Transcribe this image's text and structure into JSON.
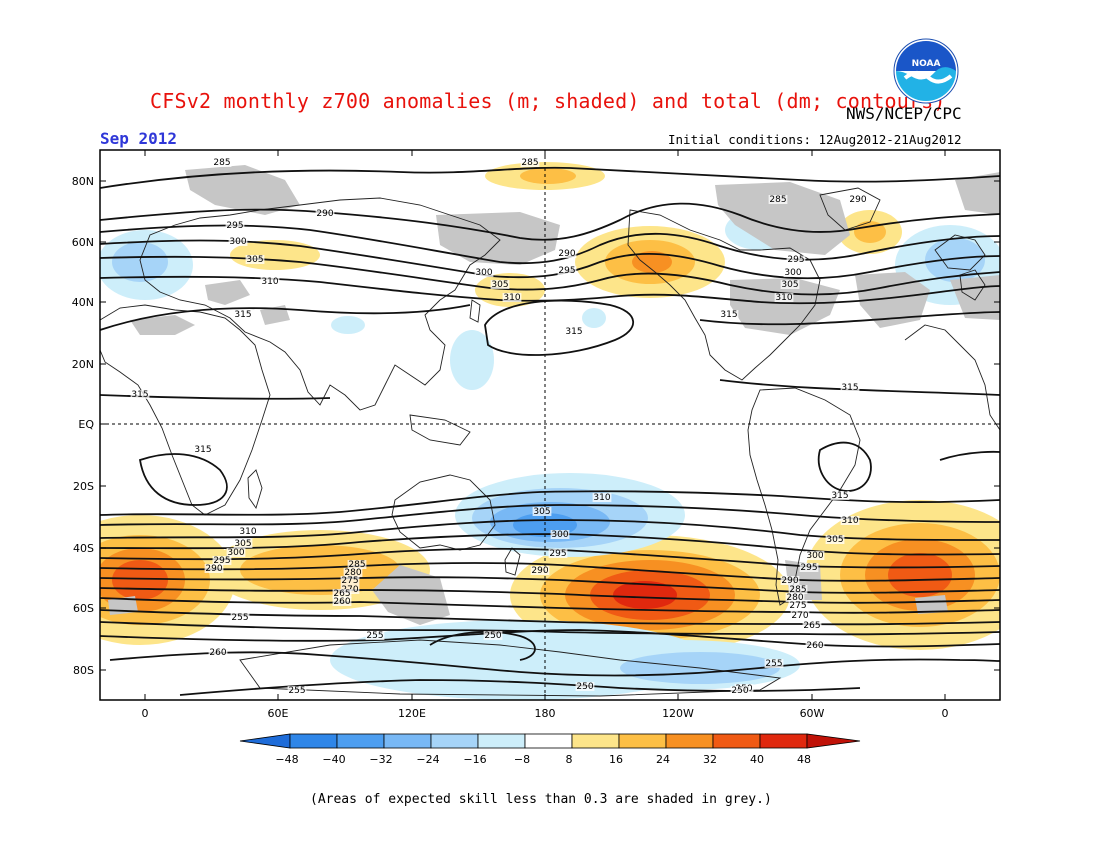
{
  "title": "CFSv2 monthly z700 anomalies (m; shaded) and total (dm; contours)",
  "organization": "NWS/NCEP/CPC",
  "logo_text": "NOAA",
  "month": "Sep 2012",
  "initial_conditions": "Initial conditions: 12Aug2012-21Aug2012",
  "lat_ticks": [
    "80N",
    "60N",
    "40N",
    "20N",
    "EQ",
    "20S",
    "40S",
    "60S",
    "80S"
  ],
  "lon_ticks": [
    "0",
    "60E",
    "120E",
    "180",
    "120W",
    "60W",
    "0"
  ],
  "colorbar": {
    "labels": [
      "-48",
      "-40",
      "-32",
      "-24",
      "-16",
      "-8",
      "8",
      "16",
      "24",
      "32",
      "40",
      "48"
    ],
    "colors": [
      "#1e6cd9",
      "#2f86e8",
      "#4d9ef0",
      "#78b8f5",
      "#a6d4f8",
      "#cdeefa",
      "#ffffff",
      "#fde58a",
      "#fdbf45",
      "#f79022",
      "#f05a14",
      "#e0280e",
      "#c01208"
    ]
  },
  "skill_note": "(Areas of expected skill less than 0.3 are shaded in grey.)",
  "contour_labels": [
    {
      "text": "285"
    },
    {
      "text": "285"
    },
    {
      "text": "290"
    },
    {
      "text": "295"
    },
    {
      "text": "300"
    },
    {
      "text": "305"
    },
    {
      "text": "310"
    },
    {
      "text": "315"
    },
    {
      "text": "290"
    },
    {
      "text": "295"
    },
    {
      "text": "300"
    },
    {
      "text": "305"
    },
    {
      "text": "310"
    },
    {
      "text": "315"
    },
    {
      "text": "285"
    },
    {
      "text": "290"
    },
    {
      "text": "295"
    },
    {
      "text": "300"
    },
    {
      "text": "305"
    },
    {
      "text": "310"
    },
    {
      "text": "315"
    },
    {
      "text": "315"
    },
    {
      "text": "315"
    },
    {
      "text": "315"
    },
    {
      "text": "310"
    },
    {
      "text": "305"
    },
    {
      "text": "300"
    },
    {
      "text": "295"
    },
    {
      "text": "290"
    },
    {
      "text": "285"
    },
    {
      "text": "280"
    },
    {
      "text": "275"
    },
    {
      "text": "270"
    },
    {
      "text": "265"
    },
    {
      "text": "260"
    },
    {
      "text": "255"
    },
    {
      "text": "260"
    },
    {
      "text": "255"
    },
    {
      "text": "250"
    },
    {
      "text": "310"
    },
    {
      "text": "305"
    },
    {
      "text": "300"
    },
    {
      "text": "295"
    },
    {
      "text": "290"
    },
    {
      "text": "250"
    },
    {
      "text": "315"
    },
    {
      "text": "310"
    },
    {
      "text": "305"
    },
    {
      "text": "300"
    },
    {
      "text": "295"
    },
    {
      "text": "290"
    },
    {
      "text": "285"
    },
    {
      "text": "280"
    },
    {
      "text": "275"
    },
    {
      "text": "270"
    },
    {
      "text": "265"
    },
    {
      "text": "260"
    },
    {
      "text": "255"
    },
    {
      "text": "250"
    },
    {
      "text": "255"
    },
    {
      "text": "250"
    }
  ]
}
